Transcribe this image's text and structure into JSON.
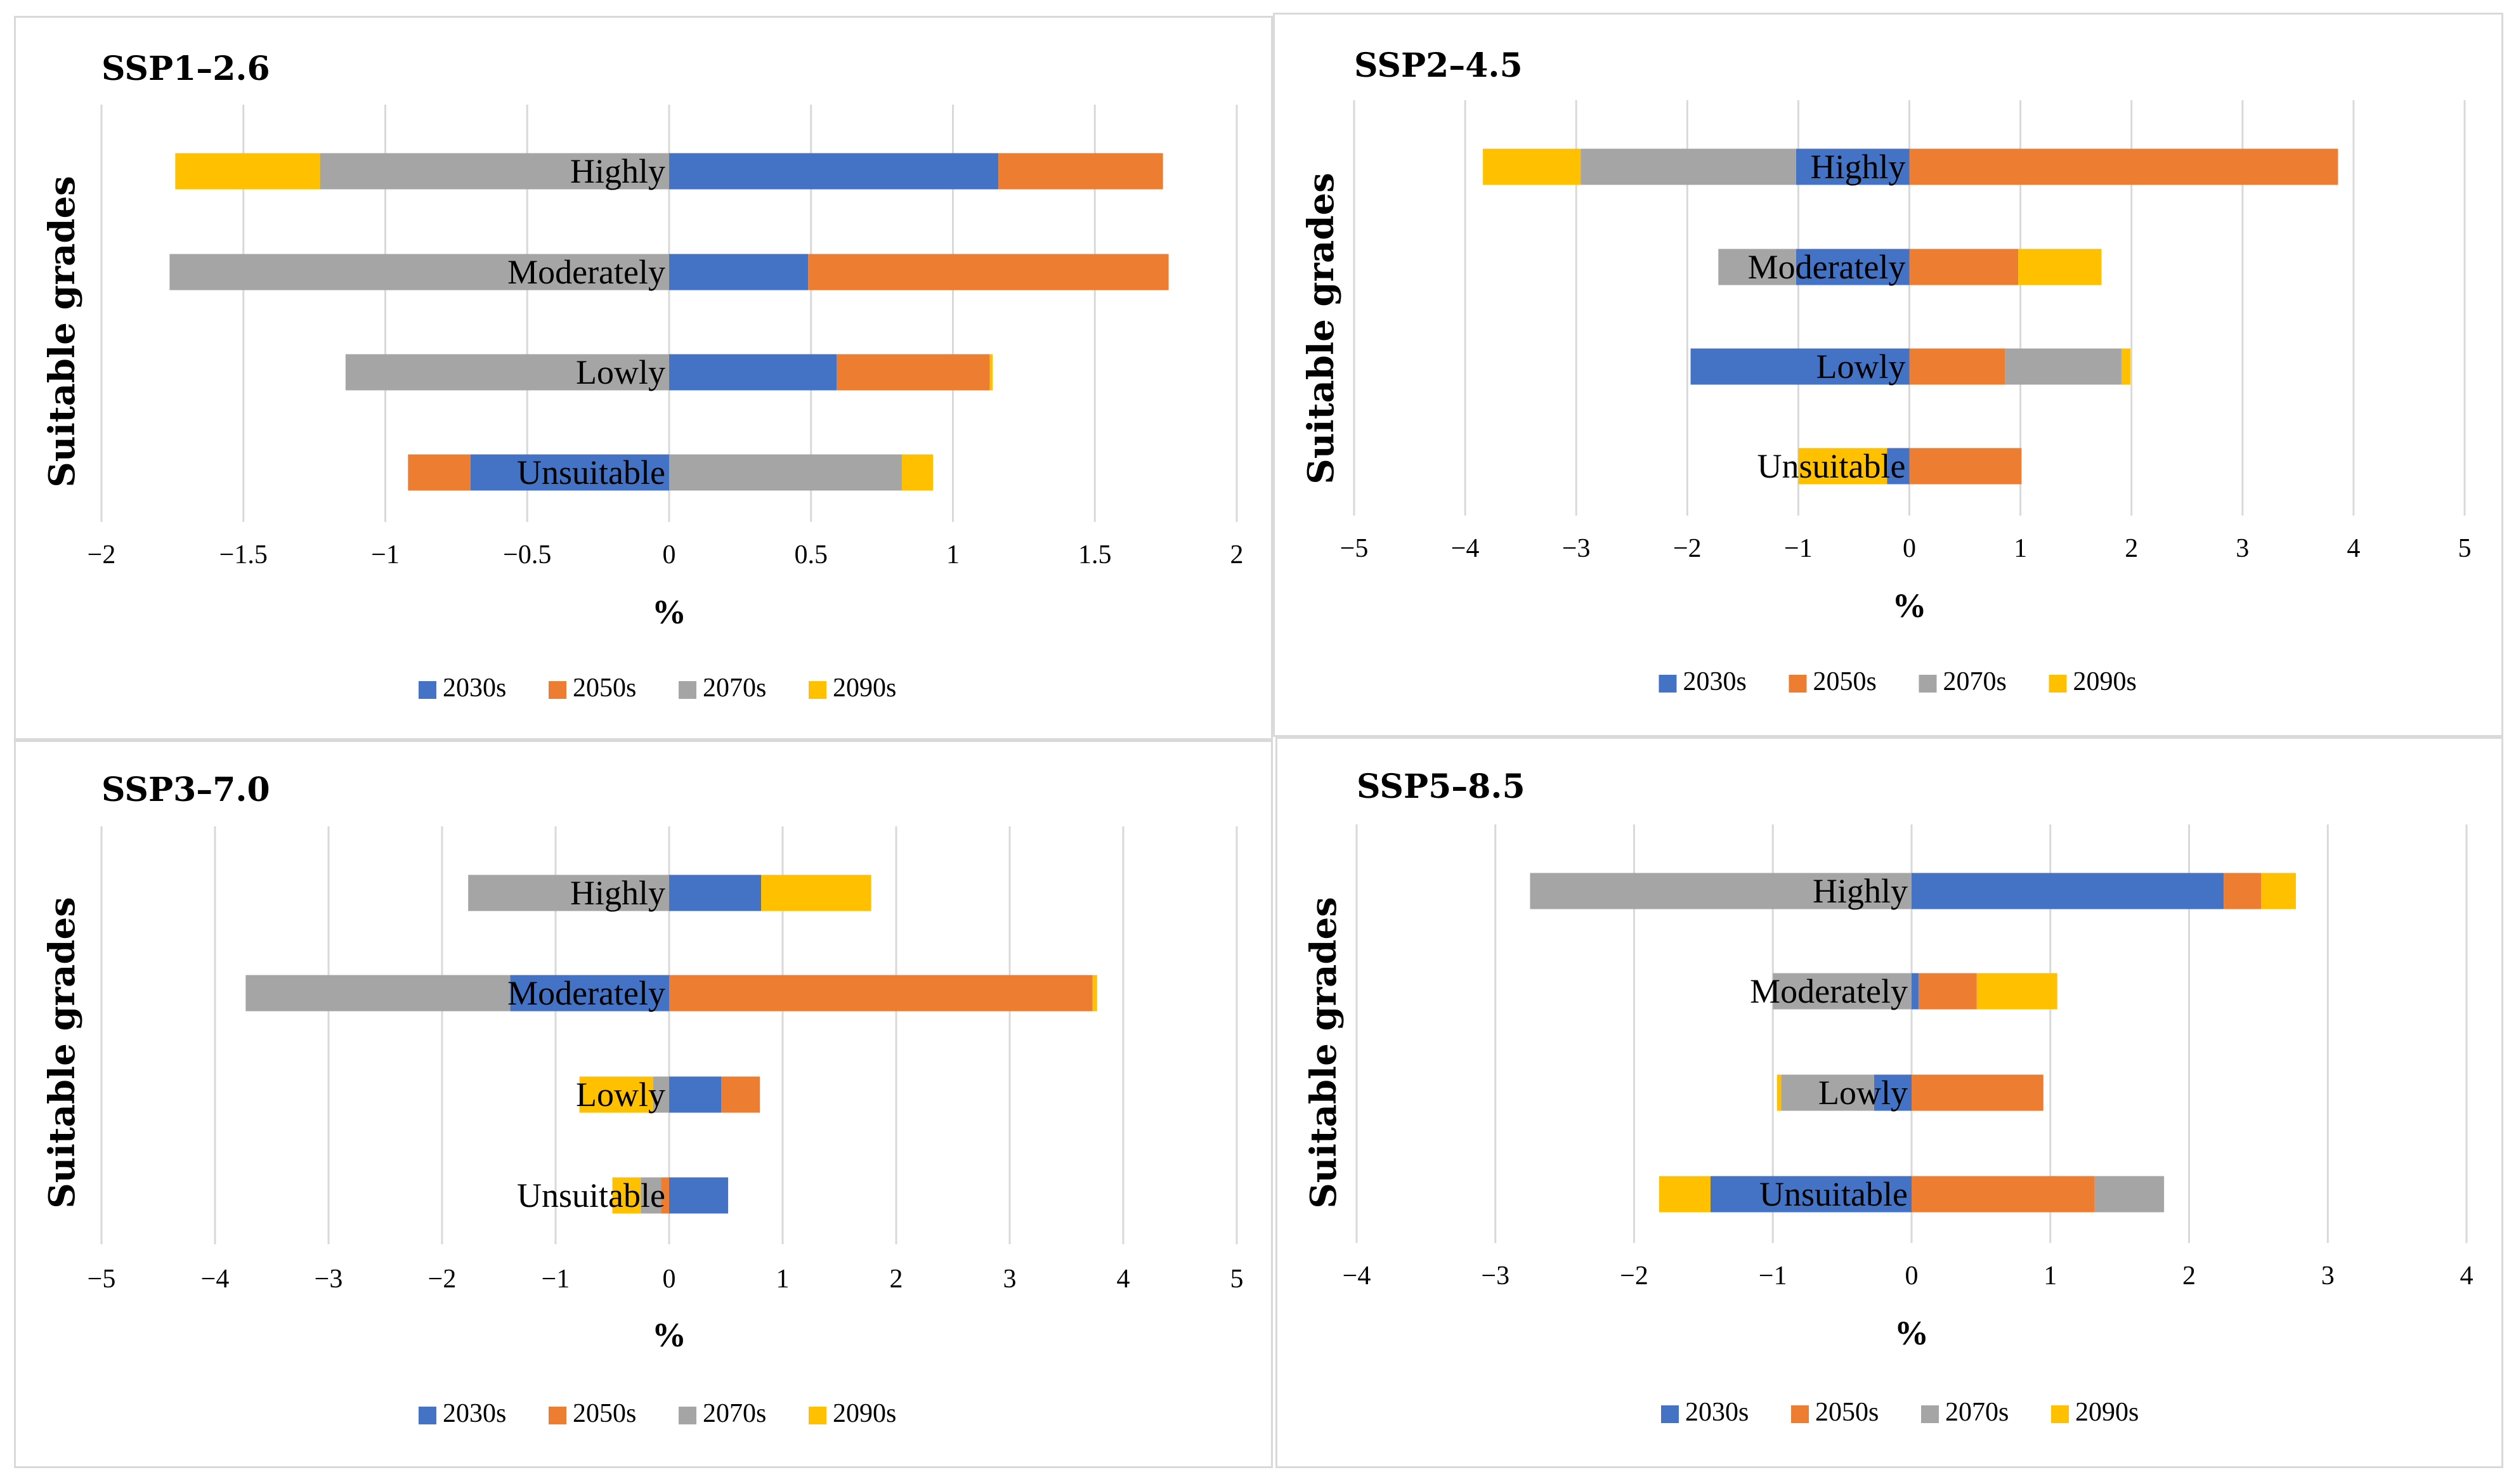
{
  "colors": {
    "2030s": "#4472c4",
    "2050s": "#ed7d31",
    "2070s": "#a5a5a5",
    "2090s": "#ffc000",
    "grid": "#d9d9d9"
  },
  "chart_data": [
    {
      "type": "bar",
      "title": "SSP1–2.6",
      "xlabel": "%",
      "ylabel": "Suitable grades",
      "xlim": [
        -2,
        2
      ],
      "xticks": [
        -2,
        -1.5,
        -1,
        -0.5,
        0,
        0.5,
        1,
        1.5,
        2
      ],
      "xtick_labels": [
        "−2",
        "−1.5",
        "−1",
        "−0.5",
        "0",
        "0.5",
        "1",
        "1.5",
        "2"
      ],
      "categories": [
        "Highly",
        "Moderately",
        "Lowly",
        "Unsuitable"
      ],
      "legend": [
        "2030s",
        "2050s",
        "2070s",
        "2090s"
      ],
      "series": [
        {
          "name": "2030s",
          "values": [
            1.16,
            0.49,
            0.59,
            -0.7
          ]
        },
        {
          "name": "2050s",
          "values": [
            0.58,
            1.27,
            0.54,
            -0.22
          ]
        },
        {
          "name": "2070s",
          "values": [
            -1.23,
            -1.76,
            -1.14,
            0.82
          ]
        },
        {
          "name": "2090s",
          "values": [
            -0.51,
            0.0,
            0.01,
            0.11
          ]
        }
      ]
    },
    {
      "type": "bar",
      "title": "SSP2–4.5",
      "xlabel": "%",
      "ylabel": "Suitable grades",
      "xlim": [
        -5,
        5
      ],
      "xticks": [
        -5,
        -4,
        -3,
        -2,
        -1,
        0,
        1,
        2,
        3,
        4,
        5
      ],
      "xtick_labels": [
        "−5",
        "−4",
        "−3",
        "−2",
        "−1",
        "0",
        "1",
        "2",
        "3",
        "4",
        "5"
      ],
      "categories": [
        "Highly",
        "Moderately",
        "Lowly",
        "Unsuitable"
      ],
      "legend": [
        "2030s",
        "2050s",
        "2070s",
        "2090s"
      ],
      "series": [
        {
          "name": "2030s",
          "values": [
            -1.02,
            -1.02,
            -1.97,
            -0.2
          ]
        },
        {
          "name": "2050s",
          "values": [
            3.86,
            0.98,
            0.86,
            1.01
          ]
        },
        {
          "name": "2070s",
          "values": [
            -1.94,
            -0.7,
            1.05,
            0.0
          ]
        },
        {
          "name": "2090s",
          "values": [
            -0.88,
            0.75,
            0.08,
            -0.8
          ]
        }
      ]
    },
    {
      "type": "bar",
      "title": "SSP3–7.0",
      "xlabel": "%",
      "ylabel": "Suitable grades",
      "xlim": [
        -5,
        5
      ],
      "xticks": [
        -5,
        -4,
        -3,
        -2,
        -1,
        0,
        1,
        2,
        3,
        4,
        5
      ],
      "xtick_labels": [
        "−5",
        "−4",
        "−3",
        "−2",
        "−1",
        "0",
        "1",
        "2",
        "3",
        "4",
        "5"
      ],
      "categories": [
        "Highly",
        "Moderately",
        "Lowly",
        "Unsuitable"
      ],
      "legend": [
        "2030s",
        "2050s",
        "2070s",
        "2090s"
      ],
      "series": [
        {
          "name": "2030s",
          "values": [
            0.81,
            -1.4,
            0.46,
            0.52
          ]
        },
        {
          "name": "2050s",
          "values": [
            0.0,
            3.73,
            0.34,
            -0.07
          ]
        },
        {
          "name": "2070s",
          "values": [
            -1.77,
            -2.33,
            -0.14,
            -0.18
          ]
        },
        {
          "name": "2090s",
          "values": [
            0.97,
            0.04,
            -0.65,
            -0.25
          ]
        }
      ]
    },
    {
      "type": "bar",
      "title": "SSP5–8.5",
      "xlabel": "%",
      "ylabel": "Suitable grades",
      "xlim": [
        -4,
        4
      ],
      "xticks": [
        -4,
        -3,
        -2,
        -1,
        0,
        1,
        2,
        3,
        4
      ],
      "xtick_labels": [
        "−4",
        "−3",
        "−2",
        "−1",
        "0",
        "1",
        "2",
        "3",
        "4"
      ],
      "categories": [
        "Highly",
        "Moderately",
        "Lowly",
        "Unsuitable"
      ],
      "legend": [
        "2030s",
        "2050s",
        "2070s",
        "2090s"
      ],
      "series": [
        {
          "name": "2030s",
          "values": [
            2.25,
            0.05,
            -0.27,
            -1.45
          ]
        },
        {
          "name": "2050s",
          "values": [
            0.27,
            0.42,
            0.95,
            1.32
          ]
        },
        {
          "name": "2070s",
          "values": [
            -2.75,
            -1.0,
            -0.67,
            0.5
          ]
        },
        {
          "name": "2090s",
          "values": [
            0.25,
            0.58,
            -0.03,
            -0.37
          ]
        }
      ]
    }
  ]
}
